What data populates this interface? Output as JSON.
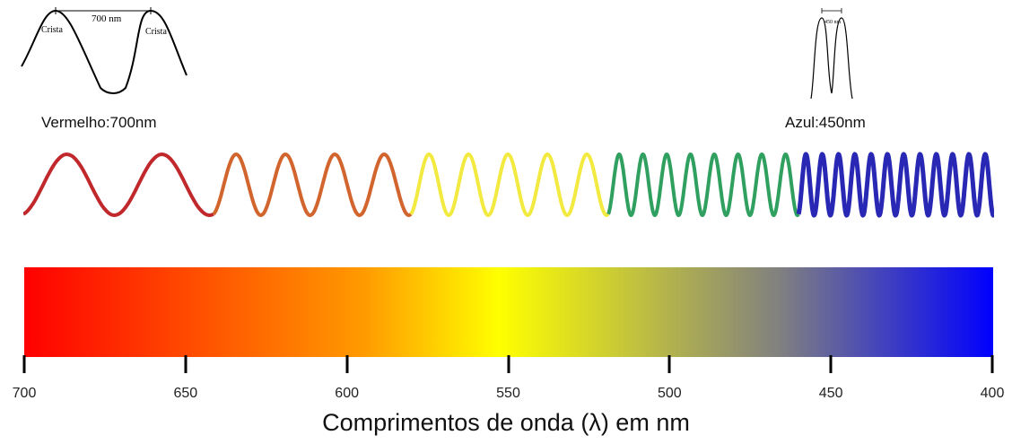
{
  "insets": {
    "red": {
      "wavelength_label": "700 nm",
      "crest_left": "Crista",
      "crest_right": "Crista"
    },
    "blue": {
      "wavelength_label": "450 nm"
    }
  },
  "labels": {
    "red": "Vermelho:700nm",
    "blue": "Azul:450nm"
  },
  "spectrum": {
    "colors": {
      "red": "#ff0000",
      "orange": "#ff9a00",
      "yellow": "#ffff00",
      "gray": "#808080",
      "blue": "#0000ff"
    }
  },
  "wave_strip": {
    "segments": [
      {
        "color": "#c0282c",
        "cycles": 2
      },
      {
        "color": "#d2642d",
        "cycles": 4
      },
      {
        "color": "#f2ea40",
        "cycles": 5
      },
      {
        "color": "#30a060",
        "cycles": 8
      },
      {
        "color": "#2828b4",
        "cycles": 12
      }
    ]
  },
  "axis": {
    "ticks": [
      "700",
      "650",
      "600",
      "550",
      "500",
      "450",
      "400"
    ],
    "title": "Comprimentos de onda (λ) em nm"
  }
}
